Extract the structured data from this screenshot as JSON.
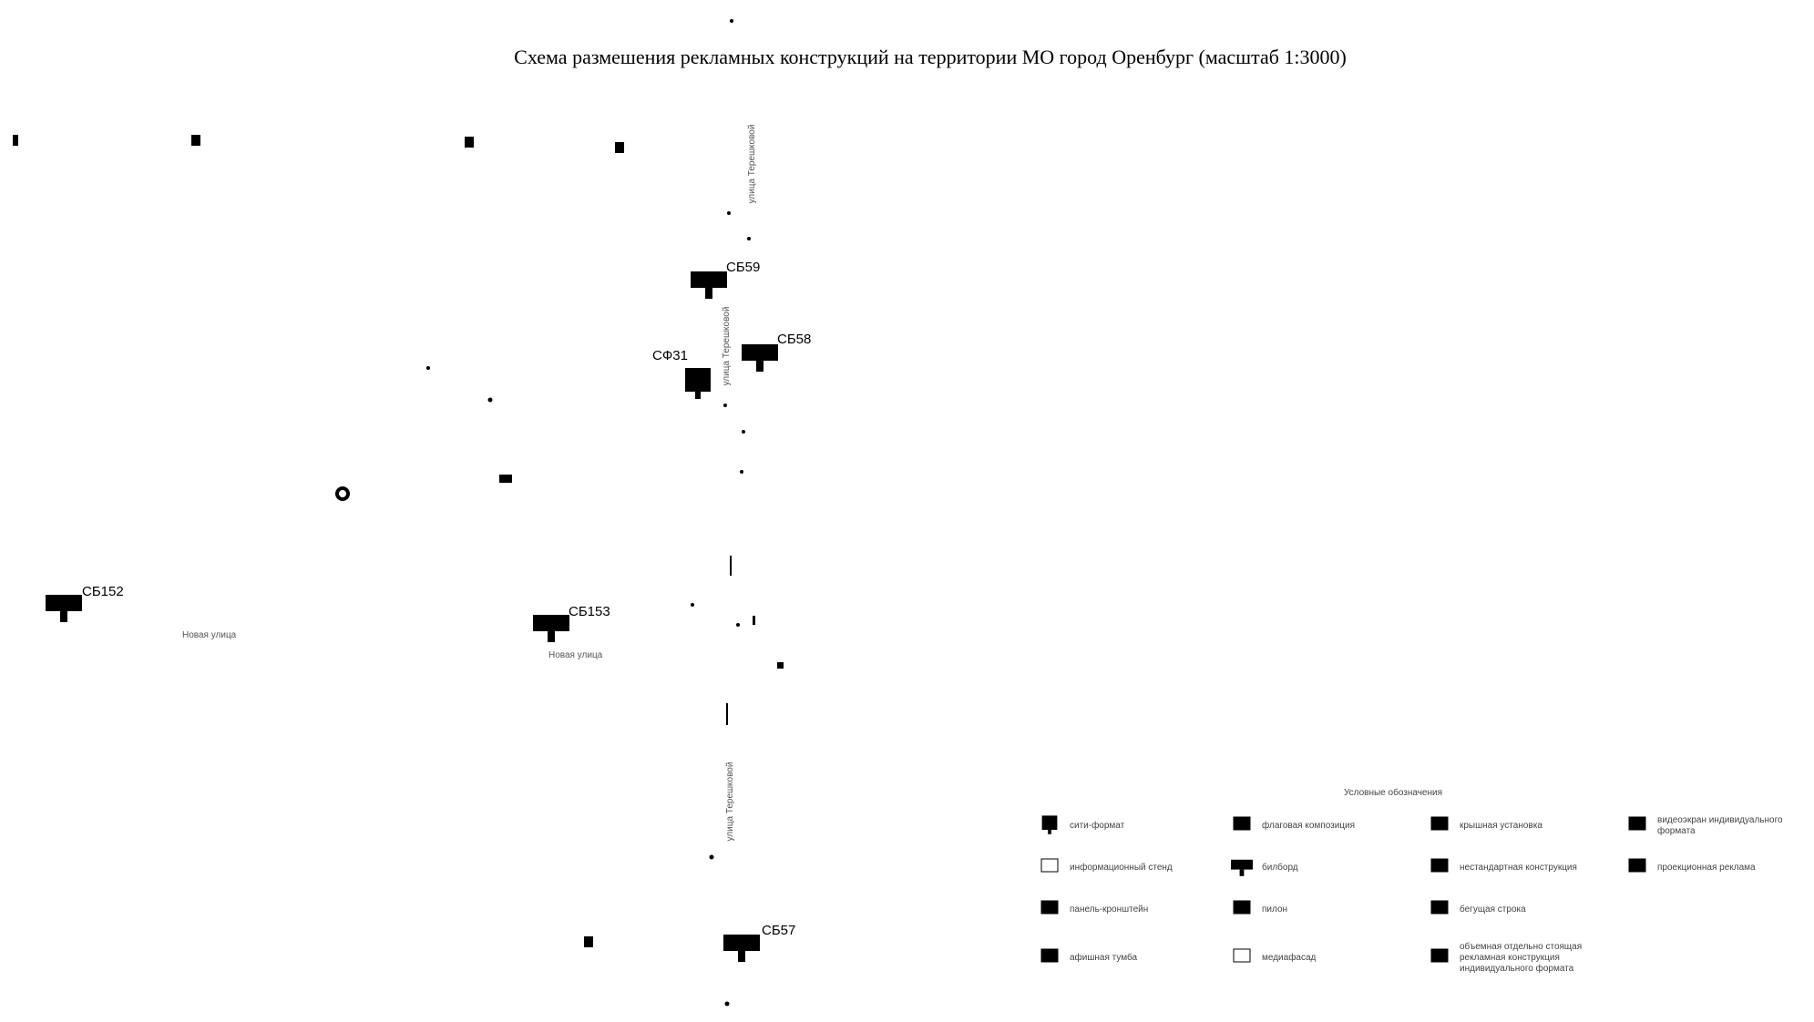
{
  "header": {
    "title": "Схема размешения рекламных конструкций на территории МО город Оренбург (масштаб 1:3000)"
  },
  "markers": [
    {
      "label": "СБ59"
    },
    {
      "label": "СБ58"
    },
    {
      "label": "СФ31"
    },
    {
      "label": "СБ152"
    },
    {
      "label": "СБ153"
    },
    {
      "label": "СБ57"
    }
  ],
  "streets": [
    "улица Терешковой",
    "улица Терешковой",
    "улица Терешковой",
    "Новая улица",
    "Новая улица"
  ],
  "legend": {
    "title": "Условные обозначения",
    "items": [
      "сити-формат",
      "флаговая композиция",
      "крышная установка",
      "видеоэкран индивидуального формата",
      "информационный стенд",
      "билборд",
      "нестандартная конструкция",
      "проекционная реклама",
      "панель-кронштейн",
      "пилон",
      "бегущая строка",
      "афишная тумба",
      "медиафасад",
      "объемная отдельно стоящая рекламная конструкция индивидуального формата"
    ]
  }
}
